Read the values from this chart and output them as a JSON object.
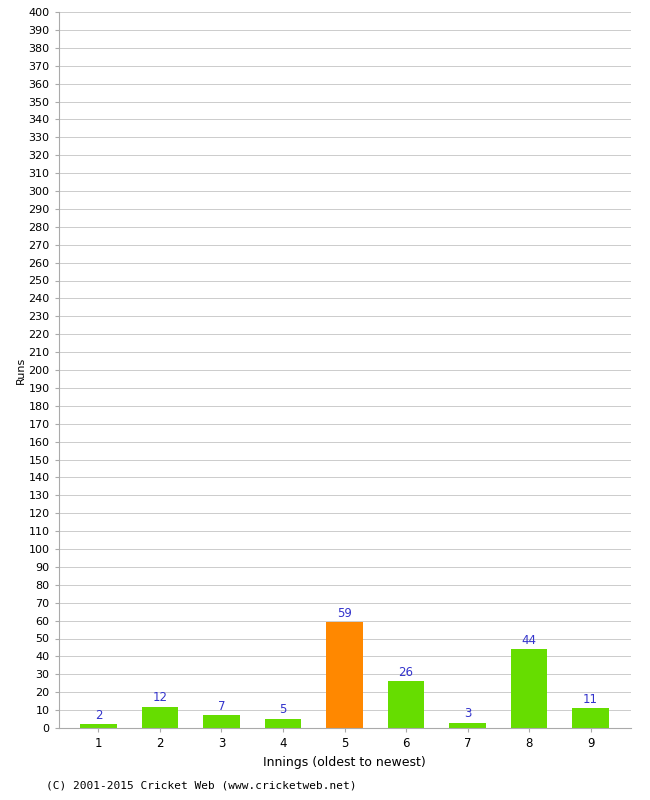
{
  "categories": [
    "1",
    "2",
    "3",
    "4",
    "5",
    "6",
    "7",
    "8",
    "9"
  ],
  "values": [
    2,
    12,
    7,
    5,
    59,
    26,
    3,
    44,
    11
  ],
  "bar_colors": [
    "#66dd00",
    "#66dd00",
    "#66dd00",
    "#66dd00",
    "#ff8800",
    "#66dd00",
    "#66dd00",
    "#66dd00",
    "#66dd00"
  ],
  "label_color": "#3333cc",
  "xlabel": "Innings (oldest to newest)",
  "ylabel": "Runs",
  "ylim": [
    0,
    400
  ],
  "background_color": "#ffffff",
  "grid_color": "#cccccc",
  "footer": "(C) 2001-2015 Cricket Web (www.cricketweb.net)"
}
